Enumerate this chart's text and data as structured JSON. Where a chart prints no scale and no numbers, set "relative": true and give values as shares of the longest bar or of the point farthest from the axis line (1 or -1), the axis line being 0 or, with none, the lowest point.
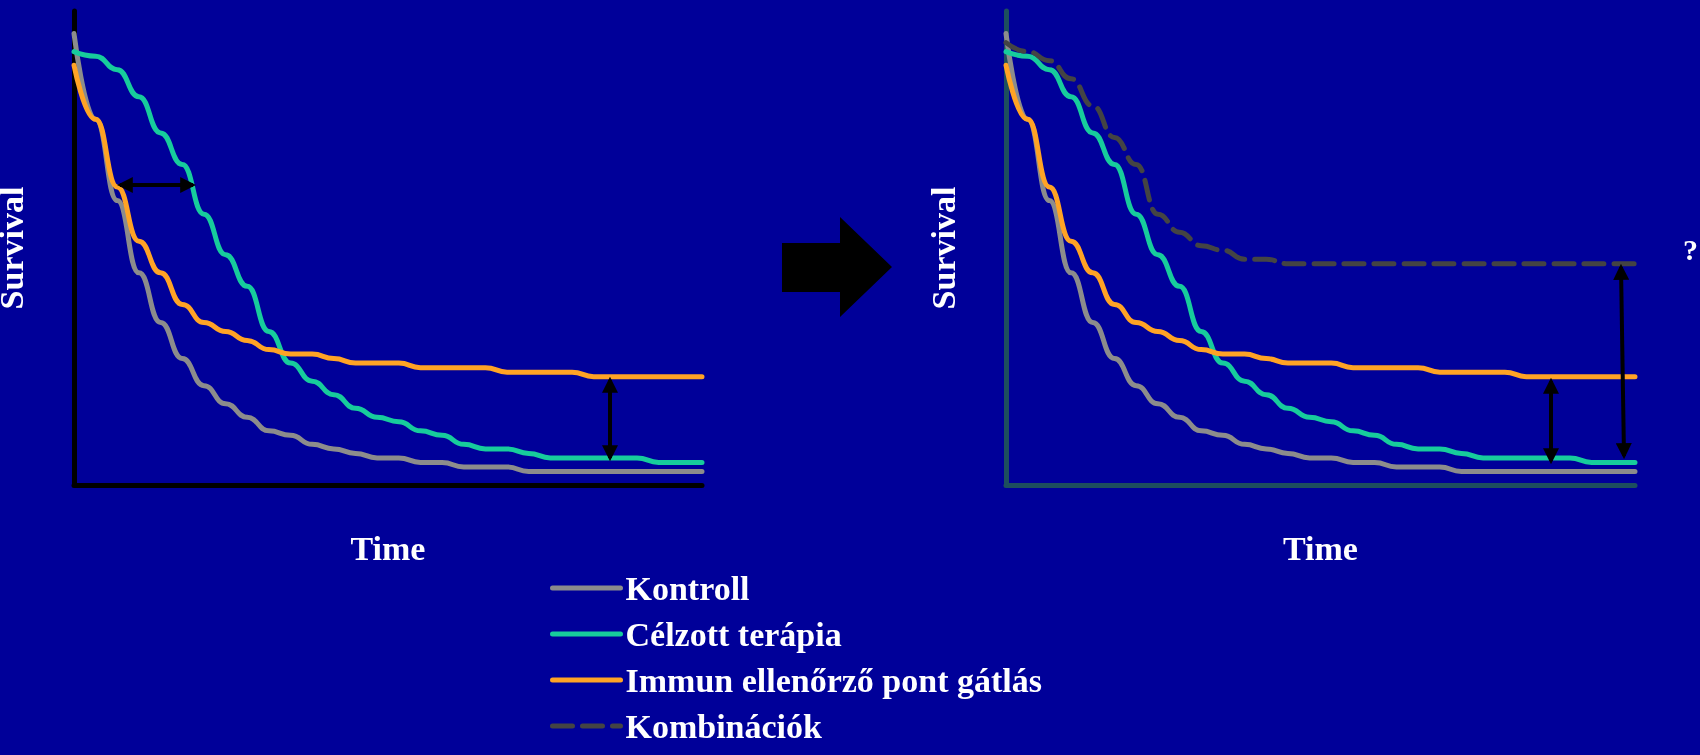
{
  "chart_data": [
    {
      "type": "line",
      "relative": true,
      "xlabel": "Time",
      "ylabel": "Survival",
      "legend": false,
      "categories": [
        null,
        null,
        null,
        null,
        null,
        null,
        null,
        null,
        null,
        null,
        null,
        null,
        null,
        null,
        null,
        null,
        null,
        null,
        null,
        null,
        null,
        null,
        null,
        null,
        null,
        null,
        null,
        null,
        null,
        null
      ],
      "series": [
        {
          "color": "#8c8c8c",
          "values": [
            1.0,
            0.81,
            0.63,
            0.47,
            0.36,
            0.28,
            0.22,
            0.18,
            0.15,
            0.12,
            0.11,
            0.09,
            0.08,
            0.07,
            0.06,
            0.06,
            0.05,
            0.05,
            0.04,
            0.04,
            0.04,
            0.03,
            0.03,
            0.03,
            0.03,
            0.03,
            0.03,
            0.03,
            0.03,
            0.03
          ]
        },
        {
          "color": "#17cc9c",
          "values": [
            0.96,
            0.95,
            0.92,
            0.86,
            0.78,
            0.71,
            0.6,
            0.51,
            0.44,
            0.34,
            0.27,
            0.23,
            0.2,
            0.17,
            0.15,
            0.14,
            0.12,
            0.11,
            0.09,
            0.08,
            0.08,
            0.07,
            0.06,
            0.06,
            0.06,
            0.06,
            0.06,
            0.05,
            0.05,
            0.05
          ]
        },
        {
          "color": "#ffa325",
          "values": [
            0.93,
            0.81,
            0.66,
            0.54,
            0.47,
            0.4,
            0.36,
            0.34,
            0.32,
            0.3,
            0.29,
            0.29,
            0.28,
            0.27,
            0.27,
            0.27,
            0.26,
            0.26,
            0.26,
            0.26,
            0.25,
            0.25,
            0.25,
            0.25,
            0.24,
            0.24,
            0.24,
            0.24,
            0.24,
            0.24
          ]
        }
      ]
    },
    {
      "type": "line",
      "relative": true,
      "xlabel": "Time",
      "ylabel": "Survival",
      "legend": "bottom",
      "annotations": [
        "?"
      ],
      "categories": [
        null,
        null,
        null,
        null,
        null,
        null,
        null,
        null,
        null,
        null,
        null,
        null,
        null,
        null,
        null,
        null,
        null,
        null,
        null,
        null,
        null,
        null,
        null,
        null,
        null,
        null,
        null,
        null,
        null,
        null
      ],
      "series": [
        {
          "name": "Kontroll",
          "color": "#8c8c8c",
          "values": [
            1.0,
            0.81,
            0.63,
            0.47,
            0.36,
            0.28,
            0.22,
            0.18,
            0.15,
            0.12,
            0.11,
            0.09,
            0.08,
            0.07,
            0.06,
            0.06,
            0.05,
            0.05,
            0.04,
            0.04,
            0.04,
            0.03,
            0.03,
            0.03,
            0.03,
            0.03,
            0.03,
            0.03,
            0.03,
            0.03
          ]
        },
        {
          "name": "Célzott terápia",
          "color": "#17cc9c",
          "values": [
            0.96,
            0.95,
            0.92,
            0.86,
            0.78,
            0.71,
            0.6,
            0.51,
            0.44,
            0.34,
            0.27,
            0.23,
            0.2,
            0.17,
            0.15,
            0.14,
            0.12,
            0.11,
            0.09,
            0.08,
            0.08,
            0.07,
            0.06,
            0.06,
            0.06,
            0.06,
            0.06,
            0.05,
            0.05,
            0.05
          ]
        },
        {
          "name": "Immun ellenőrző pont gátlás",
          "color": "#ffa325",
          "values": [
            0.93,
            0.81,
            0.66,
            0.54,
            0.47,
            0.4,
            0.36,
            0.34,
            0.32,
            0.3,
            0.29,
            0.29,
            0.28,
            0.27,
            0.27,
            0.27,
            0.26,
            0.26,
            0.26,
            0.26,
            0.25,
            0.25,
            0.25,
            0.25,
            0.24,
            0.24,
            0.24,
            0.24,
            0.24,
            0.24
          ]
        },
        {
          "name": "Kombinációk",
          "color": "#444444",
          "line_style": "dashed",
          "values": [
            0.98,
            0.96,
            0.94,
            0.9,
            0.84,
            0.77,
            0.71,
            0.6,
            0.56,
            0.53,
            0.52,
            0.5,
            0.5,
            0.49,
            0.49,
            0.49,
            0.49,
            0.49,
            0.49,
            0.49,
            0.49,
            0.49,
            0.49,
            0.49,
            0.49,
            0.49,
            0.49,
            0.49,
            0.49,
            0.49
          ]
        }
      ]
    }
  ]
}
